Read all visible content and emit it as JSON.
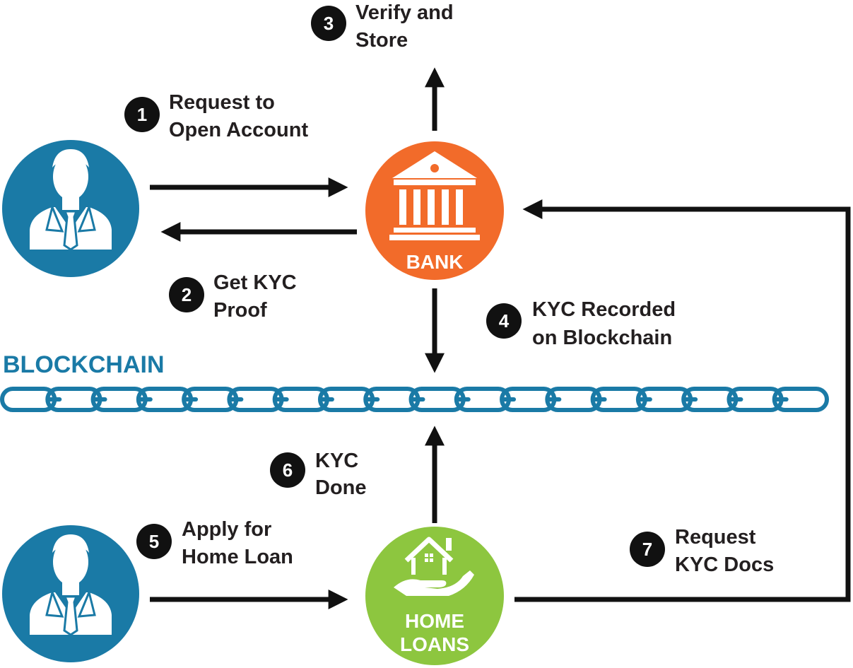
{
  "colors": {
    "person": "#1a7aa6",
    "bank": "#f26b2a",
    "home": "#8dc63f",
    "chain": "#1a7aa6",
    "arrow": "#111111",
    "badge": "#111111",
    "text": "#231f20"
  },
  "nodes": {
    "person1": {
      "icon": "businessman-icon"
    },
    "person2": {
      "icon": "businessman-icon"
    },
    "bank": {
      "icon": "bank-building-icon",
      "label": "BANK"
    },
    "home_loans": {
      "icon": "house-in-hand-icon",
      "label_line1": "HOME",
      "label_line2": "LOANS"
    }
  },
  "blockchain": {
    "title": "BLOCKCHAIN",
    "links": 18
  },
  "steps": [
    {
      "num": "1",
      "line1": "Request to",
      "line2": "Open Account"
    },
    {
      "num": "2",
      "line1": "Get KYC",
      "line2": "Proof"
    },
    {
      "num": "3",
      "line1": "Verify and",
      "line2": "Store"
    },
    {
      "num": "4",
      "line1": "KYC Recorded",
      "line2": "on Blockchain"
    },
    {
      "num": "5",
      "line1": "Apply for",
      "line2": "Home Loan"
    },
    {
      "num": "6",
      "line1": "KYC",
      "line2": "Done"
    },
    {
      "num": "7",
      "line1": "Request",
      "line2": "KYC Docs"
    }
  ]
}
